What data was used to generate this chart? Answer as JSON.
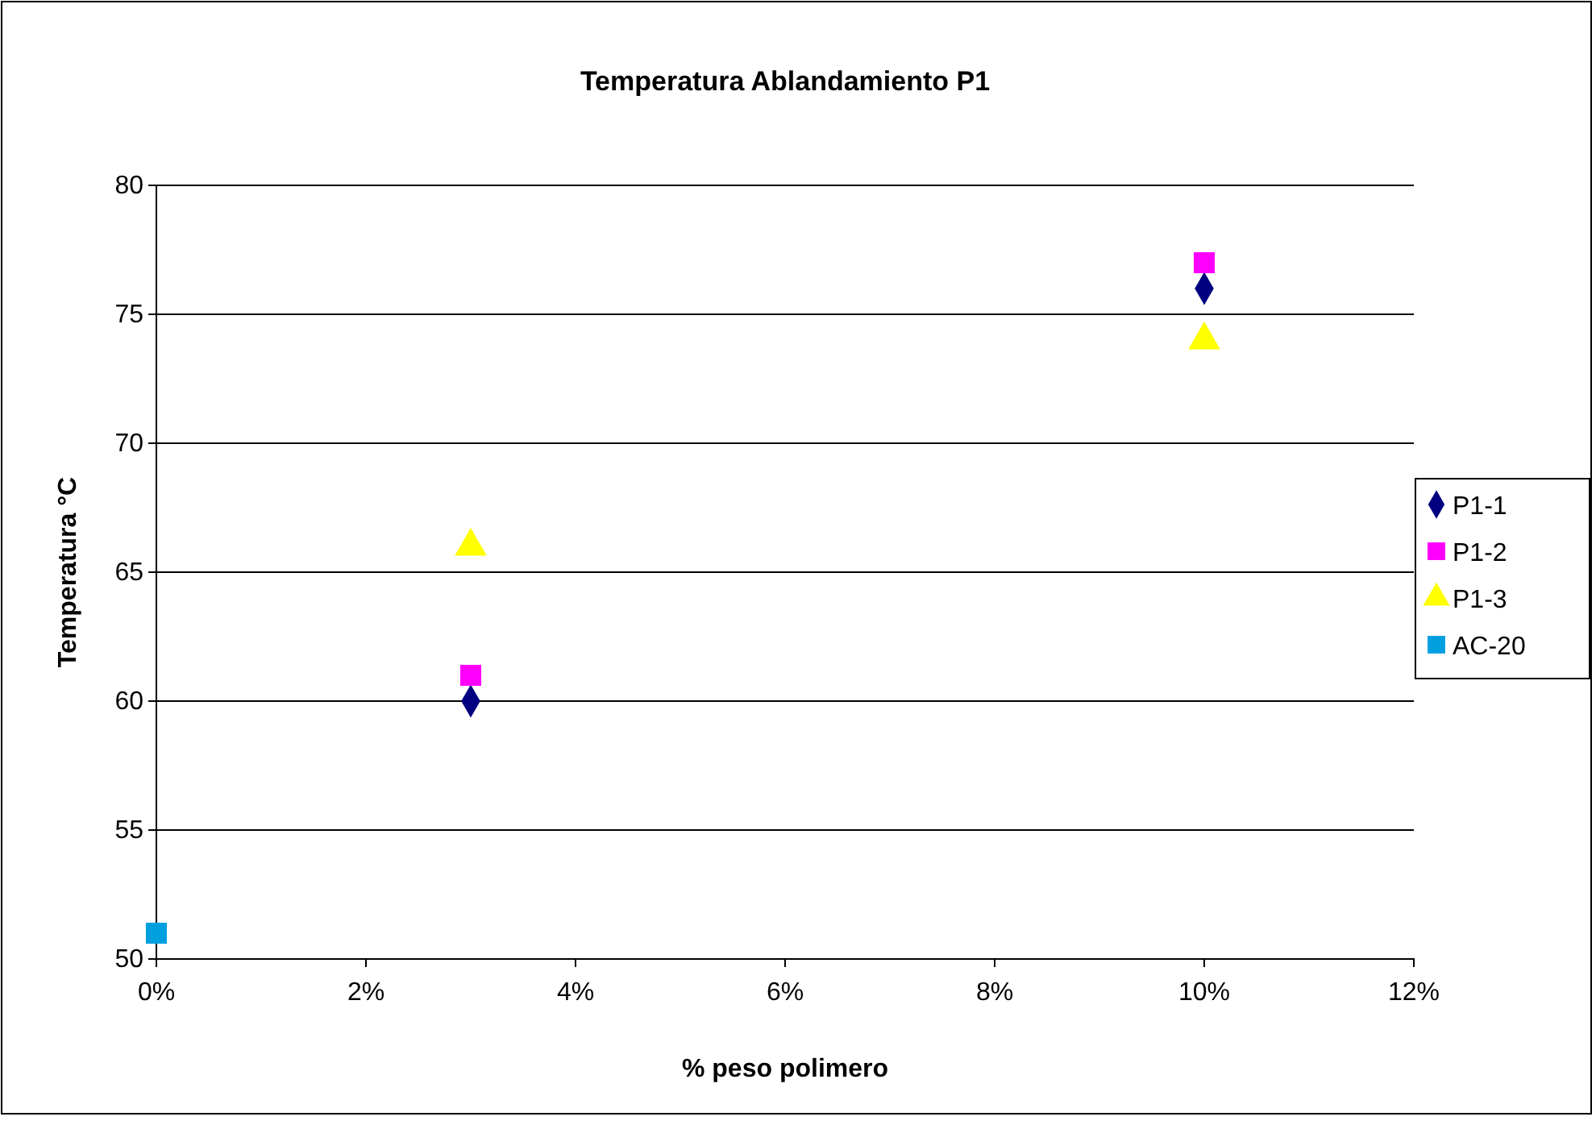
{
  "chart_data": {
    "type": "scatter",
    "title": "Temperatura Ablandamiento  P1",
    "xlabel": "% peso polimero",
    "ylabel": "Temperatura °C",
    "xlim": [
      0,
      0.12
    ],
    "xticks": [
      {
        "value": 0,
        "label": "0%"
      },
      {
        "value": 0.02,
        "label": "2%"
      },
      {
        "value": 0.04,
        "label": "4%"
      },
      {
        "value": 0.06,
        "label": "6%"
      },
      {
        "value": 0.08,
        "label": "8%"
      },
      {
        "value": 0.1,
        "label": "10%"
      },
      {
        "value": 0.12,
        "label": "12%"
      }
    ],
    "ylim": [
      50,
      80
    ],
    "yticks": [
      50,
      55,
      60,
      65,
      70,
      75,
      80
    ],
    "grid": "y",
    "legend": "right",
    "series": [
      {
        "name": "P1-1",
        "color": "#000080",
        "marker": "diamond",
        "x": [
          0.03,
          0.1
        ],
        "values": [
          60,
          76
        ]
      },
      {
        "name": "P1-2",
        "color": "#ff00ff",
        "marker": "square",
        "x": [
          0.03,
          0.1
        ],
        "values": [
          61,
          77
        ]
      },
      {
        "name": "P1-3",
        "color": "#ffff00",
        "marker": "triangle",
        "x": [
          0.03,
          0.1
        ],
        "values": [
          66,
          74
        ]
      },
      {
        "name": "AC-20",
        "color": "#00a0e0",
        "marker": "square",
        "x": [
          0
        ],
        "values": [
          51
        ]
      }
    ]
  }
}
